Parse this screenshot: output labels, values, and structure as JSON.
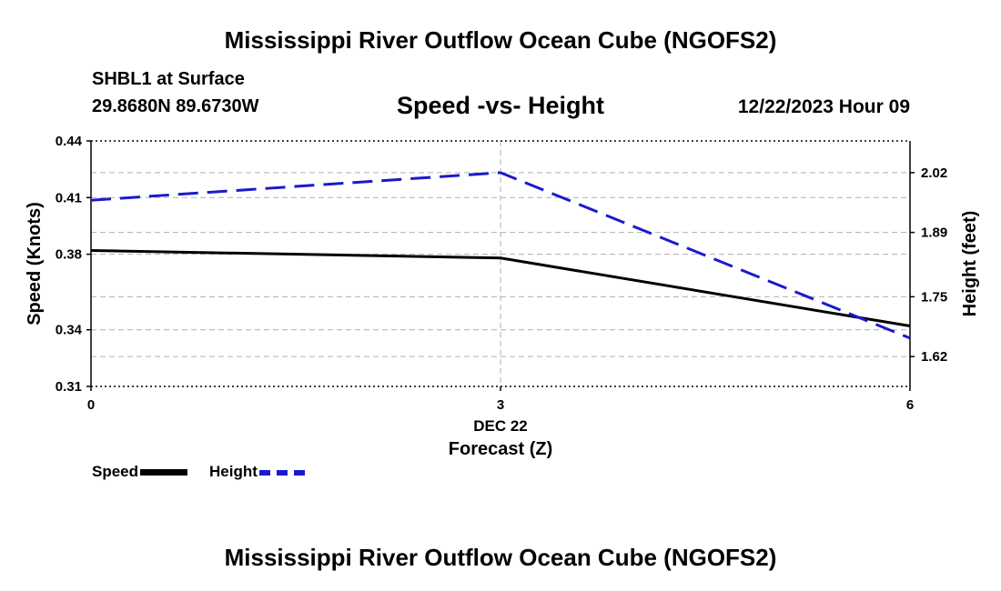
{
  "header": {
    "title": "Mississippi River Outflow Ocean Cube (NGOFS2)",
    "station": "SHBL1 at Surface",
    "coords": "29.8680N  89.6730W",
    "date": "12/22/2023 Hour 09"
  },
  "footer": {
    "title": "Mississippi River Outflow Ocean Cube (NGOFS2)"
  },
  "legend": {
    "speed_label": "Speed",
    "height_label": "Height"
  },
  "colors": {
    "speed": "#000000",
    "height": "#1a1acc",
    "grid": "#b0b0b0"
  },
  "chart_data": {
    "type": "line",
    "title": "Speed -vs- Height",
    "xlabel": "Forecast (Z)",
    "xlabel_date": "DEC 22",
    "ylabel": "Speed (Knots)",
    "y2label": "Height (feet)",
    "x": [
      0,
      3,
      6
    ],
    "xticks": [
      "0",
      "3",
      "6"
    ],
    "xlim": [
      0,
      6
    ],
    "ylim": [
      0.31,
      0.44
    ],
    "yticks": [
      0.31,
      0.34,
      0.38,
      0.41,
      0.44
    ],
    "ytick_labels": [
      "0.31",
      "0.34",
      "0.38",
      "0.41",
      "0.44"
    ],
    "y2lim": [
      1.555,
      2.089
    ],
    "y2ticks": [
      1.62,
      1.75,
      1.89,
      2.02
    ],
    "y2tick_labels": [
      "1.62",
      "1.75",
      "1.89",
      "2.02"
    ],
    "series": [
      {
        "name": "Speed",
        "axis": "left",
        "style": "solid",
        "values": [
          0.382,
          0.378,
          0.342
        ]
      },
      {
        "name": "Height",
        "axis": "right",
        "style": "dashed",
        "values": [
          1.96,
          2.02,
          1.66
        ]
      }
    ]
  }
}
